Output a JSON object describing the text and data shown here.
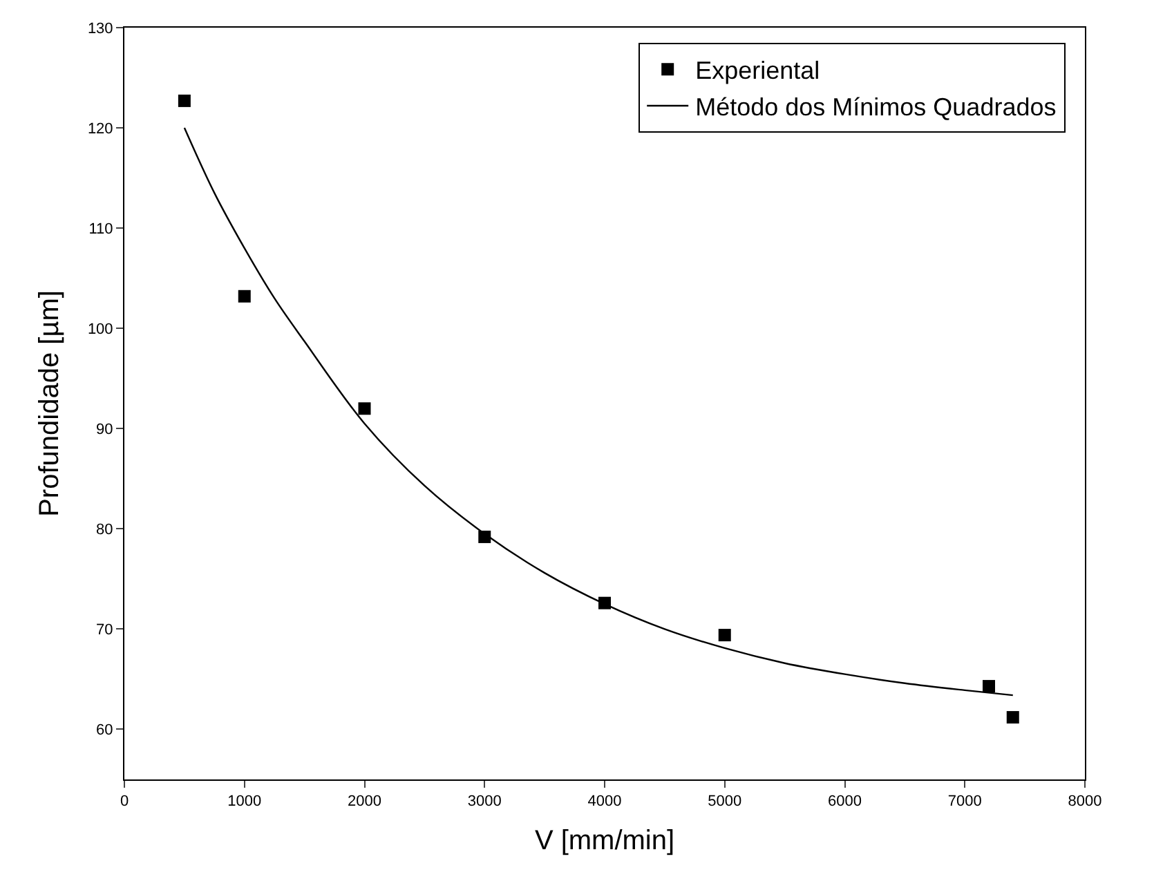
{
  "chart_data": {
    "type": "scatter",
    "xlabel": "V [mm/min]",
    "ylabel": "Profundidade [µm]",
    "xlim": [
      0,
      8000
    ],
    "ylim": [
      55,
      130
    ],
    "xticks": [
      0,
      1000,
      2000,
      3000,
      4000,
      5000,
      6000,
      7000,
      8000
    ],
    "yticks": [
      60,
      70,
      80,
      90,
      100,
      110,
      120,
      130
    ],
    "legend": "top right",
    "series": [
      {
        "name": "Experiental",
        "marker": "square",
        "color": "#000000",
        "x": [
          500,
          1000,
          2000,
          3000,
          4000,
          5000,
          7200,
          7400
        ],
        "values": [
          122.7,
          103.2,
          92,
          79.2,
          72.6,
          69.4,
          64.3,
          61.2
        ]
      },
      {
        "name": "Método dos Mínimos Quadrados",
        "type": "line",
        "marker": "none",
        "line_style": "solid",
        "color": "#000000",
        "x": [
          500,
          750,
          1000,
          1250,
          1500,
          2000,
          2500,
          3000,
          3500,
          4000,
          4500,
          5000,
          5500,
          6000,
          6500,
          7000,
          7400
        ],
        "values": [
          120,
          113.5,
          108,
          103,
          98.7,
          90.5,
          84.3,
          79.5,
          75.6,
          72.5,
          70,
          68.1,
          66.6,
          65.5,
          64.6,
          63.9,
          63.4
        ]
      }
    ]
  }
}
